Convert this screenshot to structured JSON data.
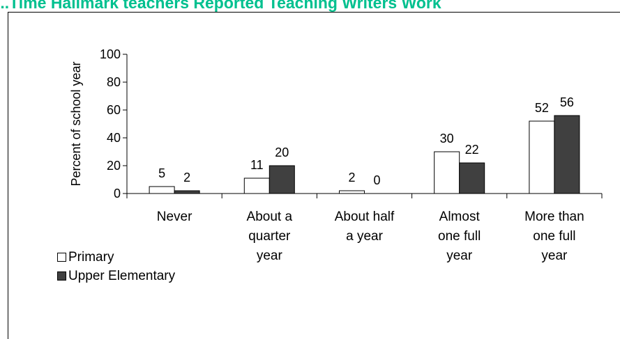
{
  "title": "...Time Hallmark teachers Reported Teaching Writers Work",
  "colors": {
    "title": "#00c08f",
    "series_1": "#ffffff",
    "series_2": "#404040"
  },
  "chart_data": {
    "type": "bar",
    "ylabel": "Percent of school year",
    "xlabel": "",
    "ylim": [
      0,
      100
    ],
    "yticks": [
      0,
      20,
      40,
      60,
      80,
      100
    ],
    "grid": false,
    "legend": "bottom-left",
    "categories": [
      [
        "Never"
      ],
      [
        "About a",
        "quarter",
        "year"
      ],
      [
        "About half",
        "a year"
      ],
      [
        "Almost",
        "one full",
        "year"
      ],
      [
        "More than",
        "one full",
        "year"
      ]
    ],
    "series": [
      {
        "name": "Primary",
        "values": [
          5,
          11,
          2,
          30,
          52
        ]
      },
      {
        "name": "Upper Elementary",
        "values": [
          2,
          20,
          0,
          22,
          56
        ]
      }
    ]
  }
}
